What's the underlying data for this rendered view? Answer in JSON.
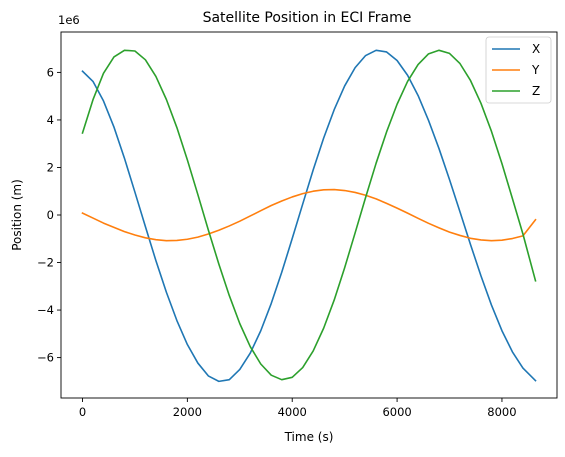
{
  "chart_data": {
    "type": "line",
    "title": "Satellite Position in ECI Frame",
    "xlabel": "Time (s)",
    "ylabel": "Position (m)",
    "y_offset_text": "1e6",
    "xlim": [
      -410,
      9050
    ],
    "ylim": [
      -7.7,
      7.7
    ],
    "x_ticks": [
      0,
      2000,
      4000,
      6000,
      8000
    ],
    "x_tick_labels": [
      "0",
      "2000",
      "4000",
      "6000",
      "8000"
    ],
    "y_ticks": [
      6,
      4,
      2,
      0,
      -2,
      -4,
      -6
    ],
    "y_tick_labels": [
      "6",
      "4",
      "2",
      "0",
      "−2",
      "−4",
      "−6"
    ],
    "grid": false,
    "legend": "top-right",
    "y_units_multiplier": 1000000,
    "series": [
      {
        "name": "X",
        "color": "#1f77b4",
        "x": [
          0,
          200,
          400,
          600,
          800,
          1000,
          1200,
          1400,
          1600,
          1800,
          2000,
          2200,
          2400,
          2600,
          2800,
          3000,
          3200,
          3400,
          3600,
          3800,
          4000,
          4200,
          4400,
          4600,
          4800,
          5000,
          5200,
          5400,
          5600,
          5800,
          6000,
          6200,
          6400,
          6600,
          6800,
          7000,
          7200,
          7400,
          7600,
          7800,
          8000,
          8200,
          8400,
          8640
        ],
        "y": [
          6.05,
          5.62,
          4.8,
          3.7,
          2.39,
          0.96,
          -0.49,
          -1.92,
          -3.25,
          -4.44,
          -5.45,
          -6.23,
          -6.77,
          -7.0,
          -6.93,
          -6.5,
          -5.81,
          -4.87,
          -3.72,
          -2.41,
          -0.99,
          0.46,
          1.9,
          3.24,
          4.43,
          5.43,
          6.2,
          6.71,
          6.93,
          6.86,
          6.5,
          5.88,
          5.03,
          3.98,
          2.79,
          1.49,
          0.13,
          -1.24,
          -2.56,
          -3.79,
          -4.87,
          -5.76,
          -6.44,
          -6.97
        ]
      },
      {
        "name": "Y",
        "color": "#ff7f0e",
        "x": [
          0,
          200,
          400,
          600,
          800,
          1000,
          1200,
          1400,
          1600,
          1800,
          2000,
          2200,
          2400,
          2600,
          2800,
          3000,
          3200,
          3400,
          3600,
          3800,
          4000,
          4200,
          4400,
          4600,
          4800,
          5000,
          5200,
          5400,
          5600,
          5800,
          6000,
          6200,
          6400,
          6600,
          6800,
          7000,
          7200,
          7400,
          7600,
          7800,
          8000,
          8200,
          8400,
          8640
        ],
        "y": [
          0.08,
          -0.13,
          -0.34,
          -0.52,
          -0.7,
          -0.84,
          -0.96,
          -1.04,
          -1.08,
          -1.07,
          -1.02,
          -0.93,
          -0.8,
          -0.64,
          -0.46,
          -0.26,
          -0.04,
          0.18,
          0.4,
          0.59,
          0.76,
          0.9,
          1.0,
          1.06,
          1.07,
          1.03,
          0.95,
          0.83,
          0.68,
          0.49,
          0.29,
          0.08,
          -0.14,
          -0.35,
          -0.54,
          -0.72,
          -0.86,
          -0.98,
          -1.05,
          -1.08,
          -1.06,
          -0.99,
          -0.88,
          -0.2
        ]
      },
      {
        "name": "Z",
        "color": "#2ca02c",
        "x": [
          0,
          200,
          400,
          600,
          800,
          1000,
          1200,
          1400,
          1600,
          1800,
          2000,
          2200,
          2400,
          2600,
          2800,
          3000,
          3200,
          3400,
          3600,
          3800,
          4000,
          4200,
          4400,
          4600,
          4800,
          5000,
          5200,
          5400,
          5600,
          5800,
          6000,
          6200,
          6400,
          6600,
          6800,
          7000,
          7200,
          7400,
          7600,
          7800,
          8000,
          8200,
          8400,
          8640
        ],
        "y": [
          3.45,
          4.85,
          5.96,
          6.65,
          6.93,
          6.9,
          6.53,
          5.83,
          4.86,
          3.68,
          2.32,
          0.86,
          -0.63,
          -2.06,
          -3.39,
          -4.57,
          -5.54,
          -6.27,
          -6.74,
          -6.93,
          -6.83,
          -6.42,
          -5.72,
          -4.76,
          -3.58,
          -2.22,
          -0.75,
          0.74,
          2.18,
          3.5,
          4.66,
          5.62,
          6.33,
          6.78,
          6.93,
          6.8,
          6.37,
          5.66,
          4.7,
          3.52,
          2.16,
          0.69,
          -0.8,
          -2.77
        ]
      }
    ]
  }
}
